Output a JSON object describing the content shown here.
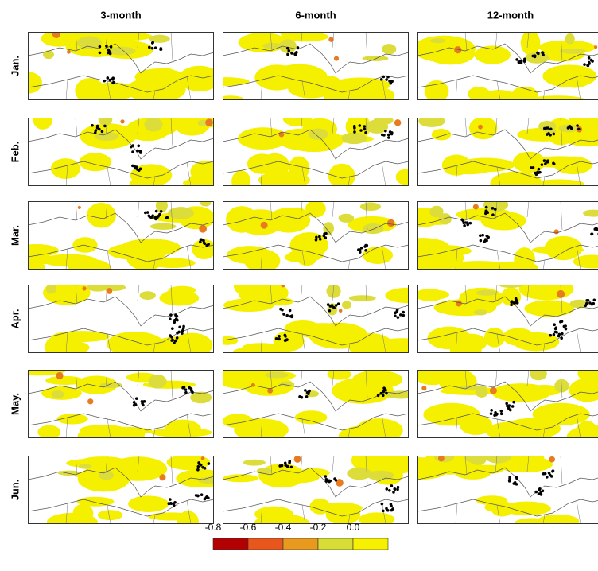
{
  "columns": [
    "3-month",
    "6-month",
    "12-month"
  ],
  "rows": [
    "Jan.",
    "Feb.",
    "Mar.",
    "Apr.",
    "May.",
    "Jun."
  ],
  "legend": {
    "ticks": [
      -0.8,
      -0.6,
      -0.4,
      -0.2,
      {
        "value": 0,
        "label": "0.0"
      }
    ],
    "colors": [
      "#b30000",
      "#e8561c",
      "#e89a1e",
      "#d8dc36",
      "#f7f000"
    ]
  }
}
